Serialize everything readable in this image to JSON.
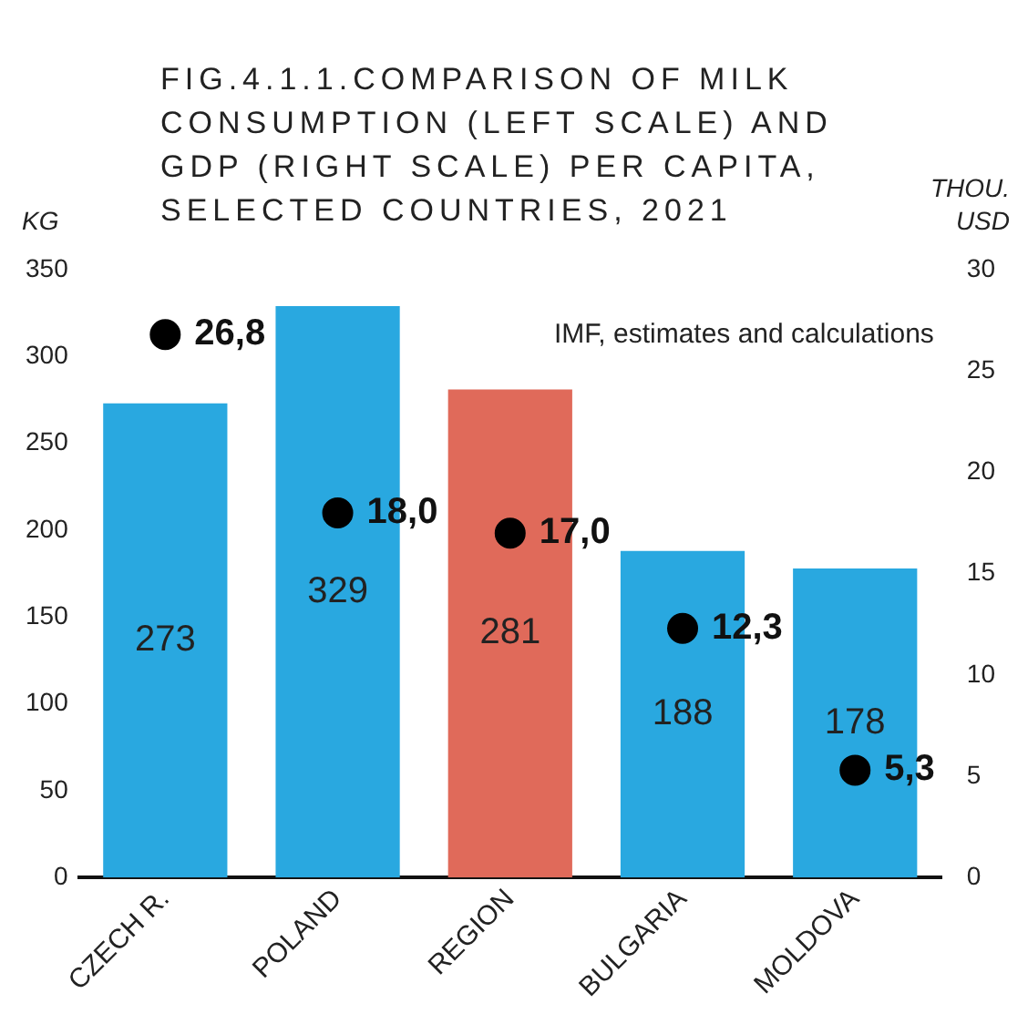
{
  "chart_data": {
    "type": "bar",
    "title": "FIG.4.1.1.COMPARISON OF MILK CONSUMPTION (LEFT SCALE) AND GDP (RIGHT SCALE) PER CAPITA, SELECTED COUNTRIES, 2021",
    "ylabel": "KG",
    "y2label": "THOU. USD",
    "annotations": [
      "IMF, estimates and calculations"
    ],
    "categories": [
      "CZECH R.",
      "POLAND",
      "REGION",
      "BULGARIA",
      "MOLDOVA"
    ],
    "series": [
      {
        "colors": [
          "#29a8e0",
          "#29a8e0",
          "#e06a5a",
          "#29a8e0",
          "#29a8e0"
        ],
        "values": [
          273,
          329,
          281,
          188,
          178
        ],
        "value_labels": [
          "273",
          "329",
          "281",
          "188",
          "178"
        ]
      },
      {
        "type": "scatter",
        "axis": "y2",
        "color": "#000000",
        "x": [
          "CZECH R.",
          "POLAND",
          "REGION",
          "BULGARIA",
          "MOLDOVA"
        ],
        "values": [
          26.8,
          18.0,
          17.0,
          12.3,
          5.3
        ],
        "value_labels": [
          "26,8",
          "18,0",
          "17,0",
          "12,3",
          "5,3"
        ]
      }
    ],
    "ylim": [
      0,
      350
    ],
    "yticks": [
      0,
      50,
      100,
      150,
      200,
      250,
      300,
      350
    ],
    "y2lim": [
      0,
      30
    ],
    "y2ticks": [
      0,
      5,
      10,
      15,
      20,
      25,
      30
    ],
    "marker": "circle",
    "grid": false,
    "legend": false
  }
}
